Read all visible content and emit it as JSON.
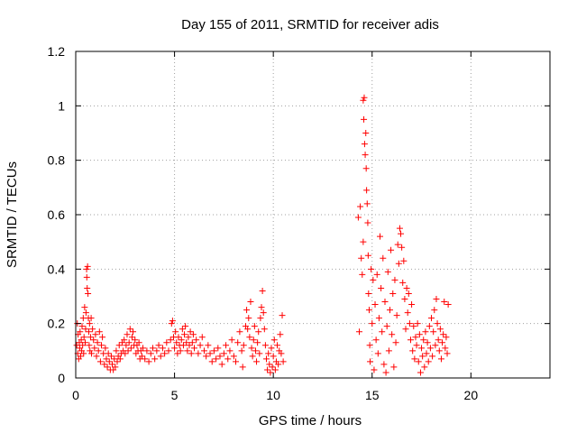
{
  "chart_data": {
    "type": "scatter",
    "title": "Day 155 of 2011, SRMTID for receiver adis",
    "xlabel": "GPS time / hours",
    "ylabel": "SRMTID / TECUs",
    "xlim": [
      0,
      24
    ],
    "ylim": [
      0,
      1.2
    ],
    "xticks": [
      0,
      5,
      10,
      15,
      20
    ],
    "xtick_labels": [
      "0",
      "5",
      "10",
      "15",
      "20"
    ],
    "yticks": [
      0,
      0.2,
      0.4,
      0.6,
      0.8,
      1,
      1.2
    ],
    "ytick_labels": [
      "0",
      "0.2",
      "0.4",
      "0.6",
      "0.8",
      "1",
      "1.2"
    ],
    "grid": true,
    "marker": "plus",
    "color": "#ff0000",
    "series": [
      {
        "name": "SRMTID",
        "points": [
          [
            0.05,
            0.12
          ],
          [
            0.08,
            0.2
          ],
          [
            0.1,
            0.09
          ],
          [
            0.12,
            0.16
          ],
          [
            0.15,
            0.07
          ],
          [
            0.18,
            0.13
          ],
          [
            0.2,
            0.11
          ],
          [
            0.22,
            0.17
          ],
          [
            0.25,
            0.08
          ],
          [
            0.28,
            0.14
          ],
          [
            0.3,
            0.1
          ],
          [
            0.32,
            0.19
          ],
          [
            0.35,
            0.12
          ],
          [
            0.38,
            0.22
          ],
          [
            0.4,
            0.09
          ],
          [
            0.42,
            0.15
          ],
          [
            0.45,
            0.26
          ],
          [
            0.48,
            0.13
          ],
          [
            0.5,
            0.18
          ],
          [
            0.52,
            0.24
          ],
          [
            0.55,
            0.4
          ],
          [
            0.56,
            0.37
          ],
          [
            0.58,
            0.33
          ],
          [
            0.6,
            0.41
          ],
          [
            0.62,
            0.31
          ],
          [
            0.64,
            0.22
          ],
          [
            0.66,
            0.17
          ],
          [
            0.68,
            0.12
          ],
          [
            0.7,
            0.2
          ],
          [
            0.72,
            0.1
          ],
          [
            0.75,
            0.15
          ],
          [
            0.78,
            0.22
          ],
          [
            0.8,
            0.09
          ],
          [
            0.85,
            0.18
          ],
          [
            0.9,
            0.14
          ],
          [
            0.95,
            0.11
          ],
          [
            1.0,
            0.16
          ],
          [
            1.05,
            0.08
          ],
          [
            1.1,
            0.13
          ],
          [
            1.15,
            0.1
          ],
          [
            1.2,
            0.17
          ],
          [
            1.25,
            0.06
          ],
          [
            1.3,
            0.12
          ],
          [
            1.35,
            0.15
          ],
          [
            1.4,
            0.09
          ],
          [
            1.45,
            0.05
          ],
          [
            1.5,
            0.11
          ],
          [
            1.55,
            0.07
          ],
          [
            1.6,
            0.04
          ],
          [
            1.65,
            0.09
          ],
          [
            1.7,
            0.06
          ],
          [
            1.75,
            0.03
          ],
          [
            1.8,
            0.08
          ],
          [
            1.85,
            0.05
          ],
          [
            1.9,
            0.03
          ],
          [
            1.95,
            0.07
          ],
          [
            2.0,
            0.04
          ],
          [
            2.05,
            0.1
          ],
          [
            2.1,
            0.06
          ],
          [
            2.15,
            0.08
          ],
          [
            2.2,
            0.12
          ],
          [
            2.25,
            0.07
          ],
          [
            2.3,
            0.09
          ],
          [
            2.35,
            0.13
          ],
          [
            2.4,
            0.1
          ],
          [
            2.45,
            0.14
          ],
          [
            2.5,
            0.09
          ],
          [
            2.55,
            0.12
          ],
          [
            2.6,
            0.16
          ],
          [
            2.65,
            0.1
          ],
          [
            2.7,
            0.13
          ],
          [
            2.75,
            0.18
          ],
          [
            2.8,
            0.11
          ],
          [
            2.85,
            0.15
          ],
          [
            2.9,
            0.17
          ],
          [
            2.95,
            0.12
          ],
          [
            3.0,
            0.14
          ],
          [
            3.05,
            0.09
          ],
          [
            3.1,
            0.12
          ],
          [
            3.15,
            0.1
          ],
          [
            3.2,
            0.13
          ],
          [
            3.25,
            0.07
          ],
          [
            3.3,
            0.1
          ],
          [
            3.35,
            0.08
          ],
          [
            3.4,
            0.11
          ],
          [
            3.5,
            0.07
          ],
          [
            3.6,
            0.1
          ],
          [
            3.7,
            0.06
          ],
          [
            3.8,
            0.09
          ],
          [
            3.9,
            0.11
          ],
          [
            4.0,
            0.07
          ],
          [
            4.1,
            0.1
          ],
          [
            4.2,
            0.12
          ],
          [
            4.3,
            0.08
          ],
          [
            4.4,
            0.11
          ],
          [
            4.5,
            0.09
          ],
          [
            4.6,
            0.13
          ],
          [
            4.7,
            0.1
          ],
          [
            4.8,
            0.14
          ],
          [
            4.85,
            0.2
          ],
          [
            4.9,
            0.21
          ],
          [
            4.95,
            0.15
          ],
          [
            5.0,
            0.11
          ],
          [
            5.05,
            0.17
          ],
          [
            5.1,
            0.13
          ],
          [
            5.15,
            0.09
          ],
          [
            5.2,
            0.15
          ],
          [
            5.25,
            0.12
          ],
          [
            5.3,
            0.1
          ],
          [
            5.35,
            0.14
          ],
          [
            5.4,
            0.18
          ],
          [
            5.45,
            0.12
          ],
          [
            5.5,
            0.16
          ],
          [
            5.55,
            0.19
          ],
          [
            5.6,
            0.13
          ],
          [
            5.65,
            0.1
          ],
          [
            5.7,
            0.15
          ],
          [
            5.75,
            0.12
          ],
          [
            5.8,
            0.17
          ],
          [
            5.85,
            0.09
          ],
          [
            5.9,
            0.13
          ],
          [
            5.95,
            0.16
          ],
          [
            6.0,
            0.11
          ],
          [
            6.1,
            0.14
          ],
          [
            6.2,
            0.09
          ],
          [
            6.3,
            0.12
          ],
          [
            6.4,
            0.15
          ],
          [
            6.5,
            0.1
          ],
          [
            6.6,
            0.08
          ],
          [
            6.7,
            0.12
          ],
          [
            6.8,
            0.09
          ],
          [
            6.9,
            0.06
          ],
          [
            7.0,
            0.1
          ],
          [
            7.1,
            0.07
          ],
          [
            7.2,
            0.11
          ],
          [
            7.3,
            0.08
          ],
          [
            7.4,
            0.05
          ],
          [
            7.5,
            0.09
          ],
          [
            7.6,
            0.12
          ],
          [
            7.7,
            0.07
          ],
          [
            7.8,
            0.1
          ],
          [
            7.9,
            0.14
          ],
          [
            8.0,
            0.08
          ],
          [
            8.1,
            0.06
          ],
          [
            8.2,
            0.13
          ],
          [
            8.3,
            0.17
          ],
          [
            8.4,
            0.1
          ],
          [
            8.45,
            0.04
          ],
          [
            8.5,
            0.12
          ],
          [
            8.6,
            0.19
          ],
          [
            8.65,
            0.25
          ],
          [
            8.7,
            0.18
          ],
          [
            8.75,
            0.22
          ],
          [
            8.8,
            0.15
          ],
          [
            8.85,
            0.28
          ],
          [
            8.9,
            0.11
          ],
          [
            8.95,
            0.08
          ],
          [
            9.0,
            0.14
          ],
          [
            9.05,
            0.19
          ],
          [
            9.1,
            0.1
          ],
          [
            9.15,
            0.06
          ],
          [
            9.2,
            0.13
          ],
          [
            9.25,
            0.17
          ],
          [
            9.3,
            0.09
          ],
          [
            9.35,
            0.22
          ],
          [
            9.4,
            0.26
          ],
          [
            9.45,
            0.32
          ],
          [
            9.5,
            0.24
          ],
          [
            9.55,
            0.18
          ],
          [
            9.6,
            0.12
          ],
          [
            9.65,
            0.07
          ],
          [
            9.7,
            0.03
          ],
          [
            9.75,
            0.09
          ],
          [
            9.8,
            0.05
          ],
          [
            9.85,
            0.02
          ],
          [
            9.9,
            0.11
          ],
          [
            9.95,
            0.04
          ],
          [
            10.0,
            0.08
          ],
          [
            10.05,
            0.14
          ],
          [
            10.1,
            0.03
          ],
          [
            10.15,
            0.06
          ],
          [
            10.2,
            0.12
          ],
          [
            10.25,
            0.05
          ],
          [
            10.3,
            0.1
          ],
          [
            10.35,
            0.16
          ],
          [
            10.4,
            0.09
          ],
          [
            10.45,
            0.23
          ],
          [
            10.5,
            0.06
          ],
          [
            14.3,
            0.59
          ],
          [
            14.35,
            0.17
          ],
          [
            14.4,
            0.63
          ],
          [
            14.45,
            0.44
          ],
          [
            14.5,
            0.38
          ],
          [
            14.55,
            0.5
          ],
          [
            14.55,
            1.02
          ],
          [
            14.58,
            0.95
          ],
          [
            14.6,
            1.03
          ],
          [
            14.62,
            0.86
          ],
          [
            14.65,
            0.82
          ],
          [
            14.68,
            0.9
          ],
          [
            14.7,
            0.77
          ],
          [
            14.72,
            0.69
          ],
          [
            14.75,
            0.64
          ],
          [
            14.78,
            0.57
          ],
          [
            14.8,
            0.45
          ],
          [
            14.82,
            0.31
          ],
          [
            14.85,
            0.25
          ],
          [
            14.88,
            0.12
          ],
          [
            14.9,
            0.06
          ],
          [
            14.95,
            0.4
          ],
          [
            15.0,
            0.2
          ],
          [
            15.05,
            0.36
          ],
          [
            15.1,
            0.03
          ],
          [
            15.15,
            0.27
          ],
          [
            15.2,
            0.14
          ],
          [
            15.25,
            0.38
          ],
          [
            15.3,
            0.09
          ],
          [
            15.35,
            0.22
          ],
          [
            15.4,
            0.52
          ],
          [
            15.45,
            0.33
          ],
          [
            15.5,
            0.17
          ],
          [
            15.55,
            0.44
          ],
          [
            15.6,
            0.05
          ],
          [
            15.65,
            0.28
          ],
          [
            15.7,
            0.02
          ],
          [
            15.75,
            0.19
          ],
          [
            15.8,
            0.39
          ],
          [
            15.85,
            0.1
          ],
          [
            15.9,
            0.25
          ],
          [
            15.95,
            0.47
          ],
          [
            16.0,
            0.16
          ],
          [
            16.05,
            0.31
          ],
          [
            16.1,
            0.04
          ],
          [
            16.15,
            0.36
          ],
          [
            16.2,
            0.13
          ],
          [
            16.25,
            0.23
          ],
          [
            16.3,
            0.49
          ],
          [
            16.35,
            0.42
          ],
          [
            16.4,
            0.55
          ],
          [
            16.45,
            0.53
          ],
          [
            16.5,
            0.48
          ],
          [
            16.55,
            0.35
          ],
          [
            16.6,
            0.43
          ],
          [
            16.65,
            0.29
          ],
          [
            16.7,
            0.18
          ],
          [
            16.75,
            0.33
          ],
          [
            16.8,
            0.24
          ],
          [
            16.85,
            0.31
          ],
          [
            16.9,
            0.2
          ],
          [
            16.95,
            0.14
          ],
          [
            17.0,
            0.27
          ],
          [
            17.05,
            0.1
          ],
          [
            17.1,
            0.19
          ],
          [
            17.15,
            0.07
          ],
          [
            17.2,
            0.15
          ],
          [
            17.25,
            0.12
          ],
          [
            17.3,
            0.2
          ],
          [
            17.35,
            0.06
          ],
          [
            17.4,
            0.16
          ],
          [
            17.45,
            0.02
          ],
          [
            17.5,
            0.11
          ],
          [
            17.55,
            0.08
          ],
          [
            17.6,
            0.14
          ],
          [
            17.65,
            0.04
          ],
          [
            17.7,
            0.17
          ],
          [
            17.75,
            0.09
          ],
          [
            17.8,
            0.13
          ],
          [
            17.85,
            0.06
          ],
          [
            17.9,
            0.19
          ],
          [
            17.95,
            0.11
          ],
          [
            18.0,
            0.22
          ],
          [
            18.05,
            0.08
          ],
          [
            18.1,
            0.17
          ],
          [
            18.15,
            0.25
          ],
          [
            18.2,
            0.12
          ],
          [
            18.25,
            0.29
          ],
          [
            18.3,
            0.2
          ],
          [
            18.35,
            0.14
          ],
          [
            18.4,
            0.1
          ],
          [
            18.45,
            0.18
          ],
          [
            18.5,
            0.07
          ],
          [
            18.55,
            0.13
          ],
          [
            18.6,
            0.16
          ],
          [
            18.65,
            0.28
          ],
          [
            18.7,
            0.11
          ],
          [
            18.75,
            0.15
          ],
          [
            18.8,
            0.09
          ],
          [
            18.85,
            0.27
          ]
        ]
      }
    ]
  }
}
